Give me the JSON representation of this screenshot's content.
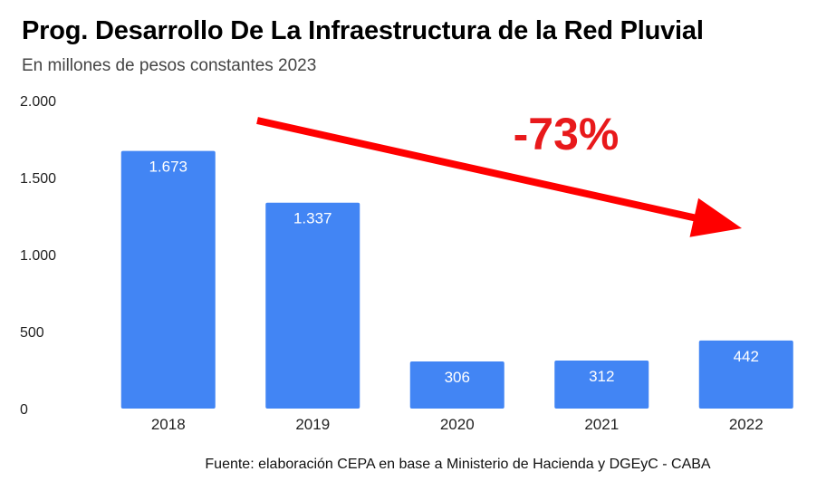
{
  "chart_data": {
    "type": "bar",
    "title": "Prog. Desarrollo De La Infraestructura de la Red Pluvial",
    "subtitle": "En millones de pesos constantes 2023",
    "categories": [
      "2018",
      "2019",
      "2020",
      "2021",
      "2022"
    ],
    "values": [
      1673,
      1337,
      306,
      312,
      442
    ],
    "value_labels": [
      "1.673",
      "1.337",
      "306",
      "312",
      "442"
    ],
    "ylim": [
      0,
      2000
    ],
    "yticks": [
      0,
      500,
      1000,
      1500,
      2000
    ],
    "ytick_labels": [
      "0",
      "500",
      "1.000",
      "1.500",
      "2.000"
    ],
    "xlabel": "",
    "ylabel": "",
    "grid": false,
    "annotation": "-73%",
    "source": "Fuente: elaboración CEPA en base a Ministerio de Hacienda y DGEyC - CABA"
  },
  "colors": {
    "bar": "#4285F4",
    "arrow": "#FF0000",
    "annotation": "#E8191B"
  }
}
